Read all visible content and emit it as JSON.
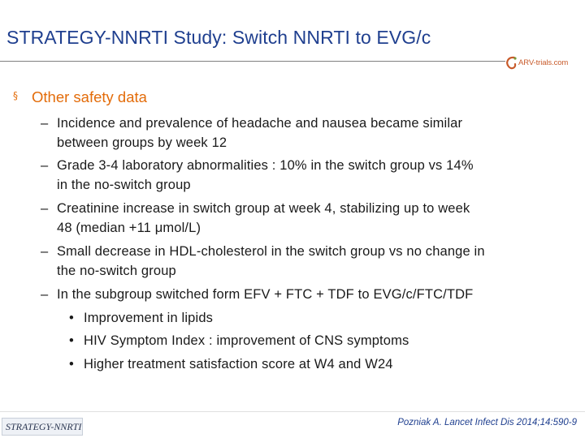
{
  "slide": {
    "title": "STRATEGY-NNRTI Study: Switch NNRTI to EVG/c",
    "logo_text": "ARV-trials.com",
    "heading": "Other safety data",
    "heading_bullet": "§",
    "dash_glyph": "–",
    "dot_glyph": "•",
    "items": [
      {
        "lines": [
          "Incidence and prevalence of headache and nausea became similar",
          "between groups by week 12"
        ]
      },
      {
        "lines": [
          "Grade 3-4 laboratory abnormalities : 10% in the switch group vs 14%",
          "in the no-switch group"
        ]
      },
      {
        "lines": [
          "Creatinine increase in switch group at week 4, stabilizing up to week",
          "48 (median +11 μmol/L)"
        ]
      },
      {
        "lines": [
          "Small decrease in HDL-cholesterol in the switch group vs no change in",
          "the no-switch group"
        ]
      },
      {
        "lines": [
          "In the subgroup switched form EFV + FTC + TDF to EVG/c/FTC/TDF"
        ],
        "subitems": [
          "Improvement in lipids",
          "HIV Symptom Index : improvement of CNS symptoms",
          "Higher treatment satisfaction score at W4 and W24"
        ]
      }
    ],
    "footer_label": "STRATEGY-NNRTI",
    "citation": "Pozniak A. Lancet Infect Dis 2014;14:590-9"
  },
  "colors": {
    "title": "#1f3f8f",
    "heading": "#e36c0a",
    "body_text": "#1a1a1a",
    "logo_accent": "#c85a2a"
  }
}
